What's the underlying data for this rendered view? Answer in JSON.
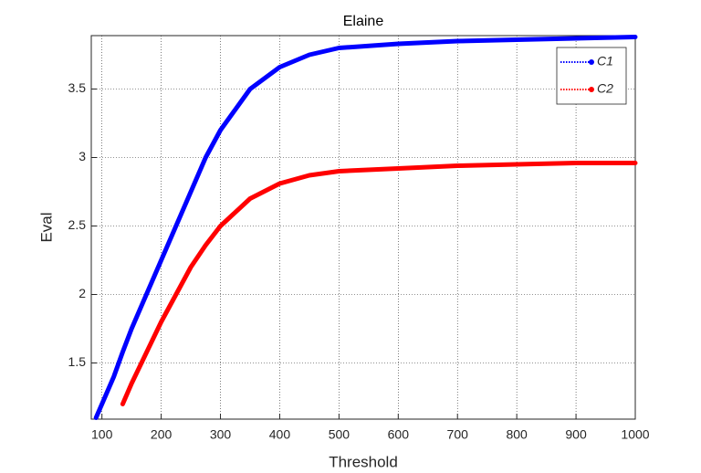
{
  "chart_data": {
    "type": "line",
    "title": "Elaine",
    "xlabel": "Threshold",
    "ylabel": "Eval",
    "x": [
      90,
      100,
      120,
      135,
      150,
      200,
      250,
      275,
      300,
      350,
      400,
      450,
      500,
      600,
      700,
      800,
      900,
      1000
    ],
    "series": [
      {
        "name": "C1",
        "color": "#0000ff",
        "values": [
          1.1,
          1.2,
          1.4,
          1.58,
          1.75,
          2.25,
          2.75,
          3.0,
          3.2,
          3.5,
          3.66,
          3.75,
          3.8,
          3.83,
          3.85,
          3.86,
          3.87,
          3.88
        ]
      },
      {
        "name": "C2",
        "color": "#ff0000",
        "values": [
          null,
          null,
          null,
          1.2,
          1.35,
          1.8,
          2.2,
          2.36,
          2.5,
          2.7,
          2.81,
          2.87,
          2.9,
          2.92,
          2.94,
          2.95,
          2.96,
          2.96
        ]
      }
    ],
    "xlim": [
      82,
      1000
    ],
    "ylim": [
      1.09,
      3.89
    ],
    "xticks": [
      100,
      200,
      300,
      400,
      500,
      600,
      700,
      800,
      900,
      1000
    ],
    "yticks": [
      1.5,
      2,
      2.5,
      3,
      3.5
    ],
    "grid": true,
    "legend": "northeast"
  }
}
